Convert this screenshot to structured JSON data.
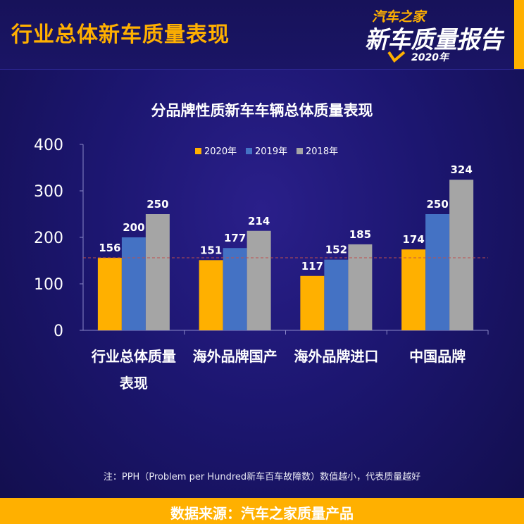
{
  "header": {
    "title": "行业总体新车质量表现",
    "logo_top": "汽车之家",
    "logo_main": "新车质量报告",
    "logo_year": "2020年"
  },
  "chart_data": {
    "type": "bar",
    "title": "分品牌性质新车车辆总体质量表现",
    "categories": [
      "行业总体质量表现",
      "海外品牌国产",
      "海外品牌进口",
      "中国品牌"
    ],
    "category_lines": [
      [
        "行业总体质量",
        "表现"
      ],
      [
        "海外品牌国产"
      ],
      [
        "海外品牌进口"
      ],
      [
        "中国品牌"
      ]
    ],
    "series": [
      {
        "name": "2020年",
        "values": [
          156,
          151,
          117,
          174
        ],
        "color": "#ffb000"
      },
      {
        "name": "2019年",
        "values": [
          200,
          177,
          152,
          250
        ],
        "color": "#4472c4"
      },
      {
        "name": "2018年",
        "values": [
          250,
          214,
          185,
          324
        ],
        "color": "#a5a5a5"
      }
    ],
    "ylim": [
      0,
      400
    ],
    "yticks": [
      0,
      100,
      200,
      300,
      400
    ],
    "reference_line": 156,
    "reference_color": "#c0504d",
    "legend_position": "top",
    "grid": false
  },
  "footnote": "注：PPH（Problem per Hundred新车百车故障数）数值越小，代表质量越好",
  "source": "数据来源：汽车之家质量产品"
}
